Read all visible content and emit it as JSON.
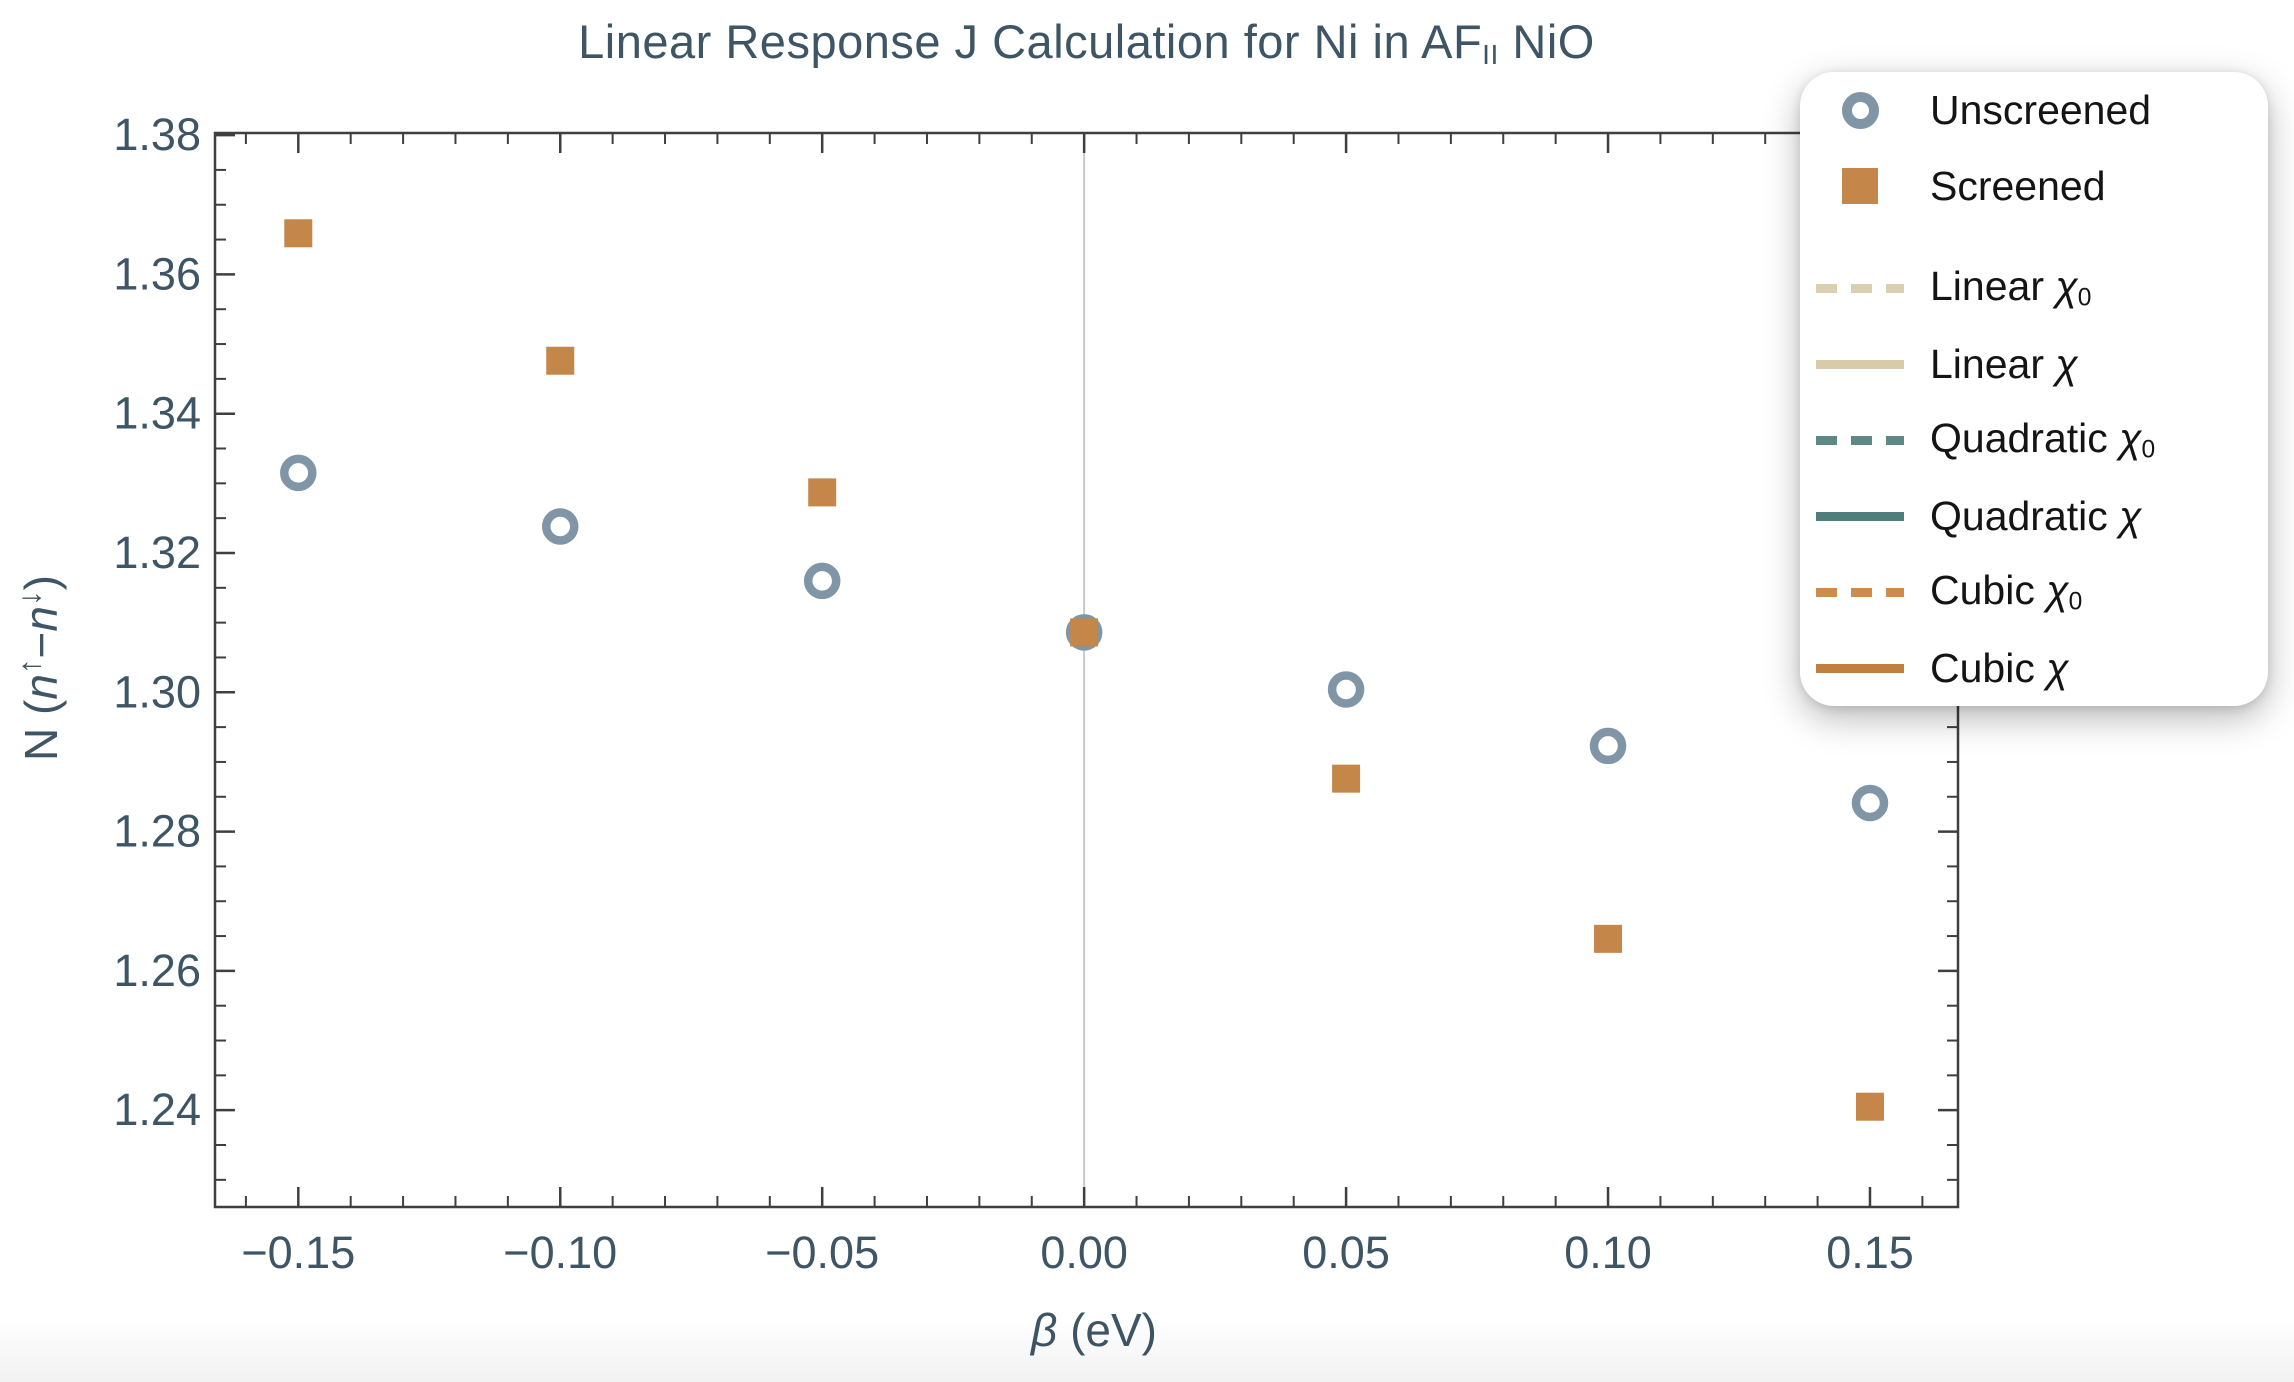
{
  "title": {
    "parts": [
      {
        "t": "Linear Response J Calculation for Ni in AF"
      },
      {
        "t": "II",
        "sub": true
      },
      {
        "t": " NiO"
      }
    ]
  },
  "axes": {
    "x": {
      "label_parts": [
        {
          "t": "β",
          "i": true
        },
        {
          "t": " (eV)"
        }
      ],
      "major_ticks": [
        -0.15,
        -0.1,
        -0.05,
        0.0,
        0.05,
        0.1,
        0.15
      ],
      "tick_labels": [
        "−0.15",
        "−0.10",
        "−0.05",
        "0.00",
        "0.05",
        "0.10",
        "0.15"
      ],
      "minor_step": 0.01
    },
    "y": {
      "label_parts": [
        {
          "t": "N ("
        },
        {
          "t": "n",
          "i": true
        },
        {
          "t": "↑",
          "sup": true
        },
        {
          "t": "−"
        },
        {
          "t": "n",
          "i": true
        },
        {
          "t": "↓",
          "sup": true
        },
        {
          "t": ")"
        }
      ],
      "major_ticks": [
        1.24,
        1.26,
        1.28,
        1.3,
        1.32,
        1.34,
        1.36,
        1.38
      ],
      "tick_labels": [
        "1.24",
        "1.26",
        "1.28",
        "1.30",
        "1.32",
        "1.34",
        "1.36",
        "1.38"
      ],
      "minor_step": 0.005
    }
  },
  "colors": {
    "text": "#3D5565",
    "frame": "#3F3F3F",
    "gridline": "#C8C8C8",
    "background": "#FFFFFF",
    "unscreened": "#8096A7",
    "screened": "#C5864A",
    "linear_chi0": "#DBCFB1",
    "linear_chi": "#D8CBA9",
    "quadratic_chi0": "#5D8884",
    "quadratic_chi": "#4F7D7B",
    "cubic_chi0": "#CA8C4F",
    "cubic_chi": "#C07F3E",
    "legend_text": "#141414"
  },
  "legend": {
    "position": "top-right",
    "items": [
      {
        "swatch": "circle",
        "color": "#8096A7",
        "label_parts": [
          {
            "t": "Unscreened"
          }
        ]
      },
      {
        "swatch": "square",
        "color": "#C5864A",
        "label_parts": [
          {
            "t": "Screened"
          }
        ]
      },
      {
        "swatch": "dashed",
        "color": "#DBCFB1",
        "label_parts": [
          {
            "t": "Linear "
          },
          {
            "t": "χ",
            "i": true
          },
          {
            "t": "0",
            "sub": true
          }
        ]
      },
      {
        "swatch": "solid",
        "color": "#D8CBA9",
        "label_parts": [
          {
            "t": "Linear "
          },
          {
            "t": "χ",
            "i": true
          }
        ]
      },
      {
        "swatch": "dashed",
        "color": "#5D8884",
        "label_parts": [
          {
            "t": "Quadratic "
          },
          {
            "t": "χ",
            "i": true
          },
          {
            "t": "0",
            "sub": true
          }
        ]
      },
      {
        "swatch": "solid",
        "color": "#4F7D7B",
        "label_parts": [
          {
            "t": "Quadratic "
          },
          {
            "t": "χ",
            "i": true
          }
        ]
      },
      {
        "swatch": "dashed",
        "color": "#CA8C4F",
        "label_parts": [
          {
            "t": "Cubic "
          },
          {
            "t": "χ",
            "i": true
          },
          {
            "t": "0",
            "sub": true
          }
        ]
      },
      {
        "swatch": "solid",
        "color": "#C07F3E",
        "label_parts": [
          {
            "t": "Cubic "
          },
          {
            "t": "χ",
            "i": true
          }
        ]
      }
    ]
  },
  "chart_data": {
    "type": "scatter",
    "title": "Linear Response J Calculation for Ni in AF_II NiO",
    "xlabel": "β (eV)",
    "ylabel": "N (n↑−n↓)",
    "x_values": [
      -0.15,
      -0.1,
      -0.05,
      0.0,
      0.05,
      0.1,
      0.15
    ],
    "series": [
      {
        "name": "Unscreened",
        "marker": "circle",
        "color": "#8096A7",
        "values": [
          1.3315,
          1.3238,
          1.316,
          1.3086,
          1.3004,
          1.2923,
          1.2841
        ]
      },
      {
        "name": "Screened",
        "marker": "square",
        "color": "#C5864A",
        "values": [
          1.3659,
          1.3476,
          1.3287,
          1.3086,
          1.2876,
          1.2646,
          1.2405
        ]
      }
    ],
    "fit_curves": [
      {
        "name": "Linear χ0",
        "fit_of": "Unscreened",
        "degree": 1,
        "style": "dashed",
        "color": "#DBCFB1"
      },
      {
        "name": "Quadratic χ0",
        "fit_of": "Unscreened",
        "degree": 2,
        "style": "dashed",
        "color": "#5D8884"
      },
      {
        "name": "Cubic χ0",
        "fit_of": "Unscreened",
        "degree": 3,
        "style": "dashed",
        "color": "#CA8C4F"
      },
      {
        "name": "Linear χ",
        "fit_of": "Screened",
        "degree": 1,
        "style": "solid",
        "color": "#D8CBA9"
      },
      {
        "name": "Quadratic χ",
        "fit_of": "Screened",
        "degree": 2,
        "style": "solid",
        "color": "#4F7D7B"
      },
      {
        "name": "Cubic χ",
        "fit_of": "Screened",
        "degree": 3,
        "style": "solid",
        "color": "#C07F3E"
      }
    ],
    "xlim": [
      -0.1659,
      0.1668
    ],
    "ylim": [
      1.2261,
      1.3803
    ],
    "curve_x_range": [
      -0.16,
      0.16
    ],
    "x_gridline": 0,
    "grid": "single-vertical-line-at-zero",
    "legend_position": "top-right"
  }
}
